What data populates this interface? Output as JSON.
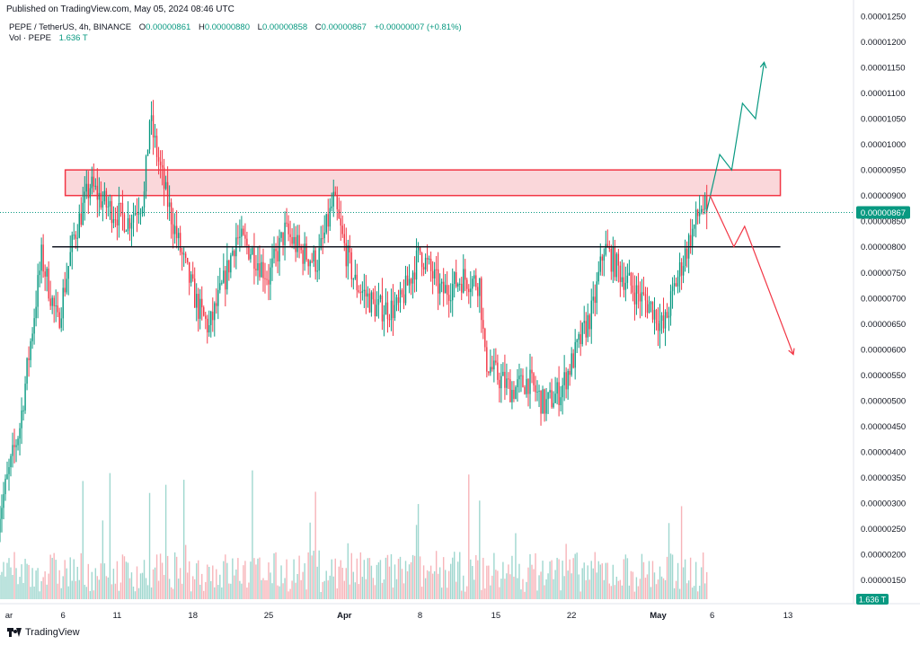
{
  "header": {
    "published": "Published on TradingView.com, May 05, 2024 08:46 UTC"
  },
  "legend": {
    "symbol": "PEPE / TetherUS, 4h, BINANCE",
    "o_label": "O",
    "o_value": "0.00000861",
    "h_label": "H",
    "h_value": "0.00000880",
    "l_label": "L",
    "l_value": "0.00000858",
    "c_label": "C",
    "c_value": "0.00000867",
    "change": "+0.00000007 (+0.81%)",
    "vol_label": "Vol · PEPE",
    "vol_value": "1.636 T"
  },
  "footer": {
    "brand": "TradingView"
  },
  "colors": {
    "up": "#089981",
    "down": "#f23645",
    "up_vol": "#9fd7cf",
    "down_vol": "#f7b4b9",
    "zone_fill": "#f8c9cd",
    "zone_stroke": "#f23645",
    "support_line": "#131722",
    "projection_up": "#089981",
    "projection_down": "#f23645"
  },
  "chart_data": {
    "type": "candlestick",
    "symbol": "PEPE / TetherUS",
    "interval": "4h",
    "exchange": "BINANCE",
    "y_axis": {
      "min": 1.3e-06,
      "max": 1.25e-05,
      "ticks": [
        "0.00001250",
        "0.00001200",
        "0.00001150",
        "0.00001100",
        "0.00001050",
        "0.00001000",
        "0.00000950",
        "0.00000900",
        "0.00000850",
        "0.00000800",
        "0.00000750",
        "0.00000700",
        "0.00000650",
        "0.00000600",
        "0.00000550",
        "0.00000500",
        "0.00000450",
        "0.00000400",
        "0.00000350",
        "0.00000300",
        "0.00000250",
        "0.00000200",
        "0.00000150"
      ]
    },
    "x_axis": {
      "labels": [
        "ar",
        "6",
        "11",
        "18",
        "25",
        "Apr",
        "8",
        "15",
        "22",
        "May",
        "6",
        "13"
      ],
      "label_days": [
        1,
        6,
        11,
        18,
        25,
        32,
        39,
        46,
        53,
        61,
        66,
        73
      ],
      "bold": [
        "Apr",
        "May"
      ],
      "last_candle_day": 65.6
    },
    "last_price": 8.67e-06,
    "last_price_label": "0.00000867",
    "volume_last_label": "1.636 T",
    "key_points": [
      {
        "day": 0,
        "price": 2.7e-06
      },
      {
        "day": 2,
        "price": 4.5e-06
      },
      {
        "day": 4,
        "price": 7.8e-06
      },
      {
        "day": 5.5,
        "price": 6.5e-06
      },
      {
        "day": 7,
        "price": 8.2e-06
      },
      {
        "day": 8.5,
        "price": 9.2e-06
      },
      {
        "day": 10,
        "price": 8.8e-06
      },
      {
        "day": 12,
        "price": 8.5e-06
      },
      {
        "day": 13.5,
        "price": 9e-06
      },
      {
        "day": 14,
        "price": 1.05e-05
      },
      {
        "day": 15.5,
        "price": 9e-06
      },
      {
        "day": 17,
        "price": 7.8e-06
      },
      {
        "day": 18.5,
        "price": 6.8e-06
      },
      {
        "day": 19.5,
        "price": 6.4e-06
      },
      {
        "day": 21,
        "price": 7.4e-06
      },
      {
        "day": 22,
        "price": 8.2e-06
      },
      {
        "day": 23.5,
        "price": 7.9e-06
      },
      {
        "day": 25,
        "price": 7.4e-06
      },
      {
        "day": 26.5,
        "price": 8.3e-06
      },
      {
        "day": 28,
        "price": 7.9e-06
      },
      {
        "day": 29.5,
        "price": 7.7e-06
      },
      {
        "day": 31,
        "price": 8.9e-06
      },
      {
        "day": 32,
        "price": 8e-06
      },
      {
        "day": 33,
        "price": 7.3e-06
      },
      {
        "day": 35,
        "price": 6.8e-06
      },
      {
        "day": 37,
        "price": 6.8e-06
      },
      {
        "day": 39,
        "price": 7.9e-06
      },
      {
        "day": 41,
        "price": 7.1e-06
      },
      {
        "day": 43,
        "price": 7.4e-06
      },
      {
        "day": 44.5,
        "price": 7.3e-06
      },
      {
        "day": 45,
        "price": 5.8e-06
      },
      {
        "day": 46,
        "price": 5.5e-06
      },
      {
        "day": 47.5,
        "price": 5.2e-06
      },
      {
        "day": 49,
        "price": 5.4e-06
      },
      {
        "day": 50.5,
        "price": 4.9e-06
      },
      {
        "day": 52,
        "price": 5.2e-06
      },
      {
        "day": 53.5,
        "price": 6e-06
      },
      {
        "day": 55,
        "price": 6.8e-06
      },
      {
        "day": 56,
        "price": 8e-06
      },
      {
        "day": 57.5,
        "price": 7.5e-06
      },
      {
        "day": 59,
        "price": 7.1e-06
      },
      {
        "day": 60.5,
        "price": 6.8e-06
      },
      {
        "day": 61.5,
        "price": 6.4e-06
      },
      {
        "day": 62.5,
        "price": 7.2e-06
      },
      {
        "day": 64,
        "price": 8.2e-06
      },
      {
        "day": 65,
        "price": 8.8e-06
      },
      {
        "day": 65.6,
        "price": 8.67e-06
      }
    ],
    "resistance_zone": {
      "from_day": 6.2,
      "to_day": 72.3,
      "low": 9e-06,
      "high": 9.5e-06
    },
    "support_line": {
      "from_day": 5.0,
      "to_day": 72.3,
      "price": 8e-06
    },
    "projection_bullish": [
      {
        "day": 65.5,
        "price": 8.7e-06
      },
      {
        "day": 66.7,
        "price": 9.8e-06
      },
      {
        "day": 67.8,
        "price": 9.5e-06
      },
      {
        "day": 68.8,
        "price": 1.08e-05
      },
      {
        "day": 70.0,
        "price": 1.05e-05
      },
      {
        "day": 70.8,
        "price": 1.16e-05
      }
    ],
    "projection_bearish": [
      {
        "day": 65.8,
        "price": 9e-06
      },
      {
        "day": 68.0,
        "price": 8e-06
      },
      {
        "day": 69.0,
        "price": 8.4e-06
      },
      {
        "day": 73.5,
        "price": 5.9e-06
      }
    ]
  }
}
